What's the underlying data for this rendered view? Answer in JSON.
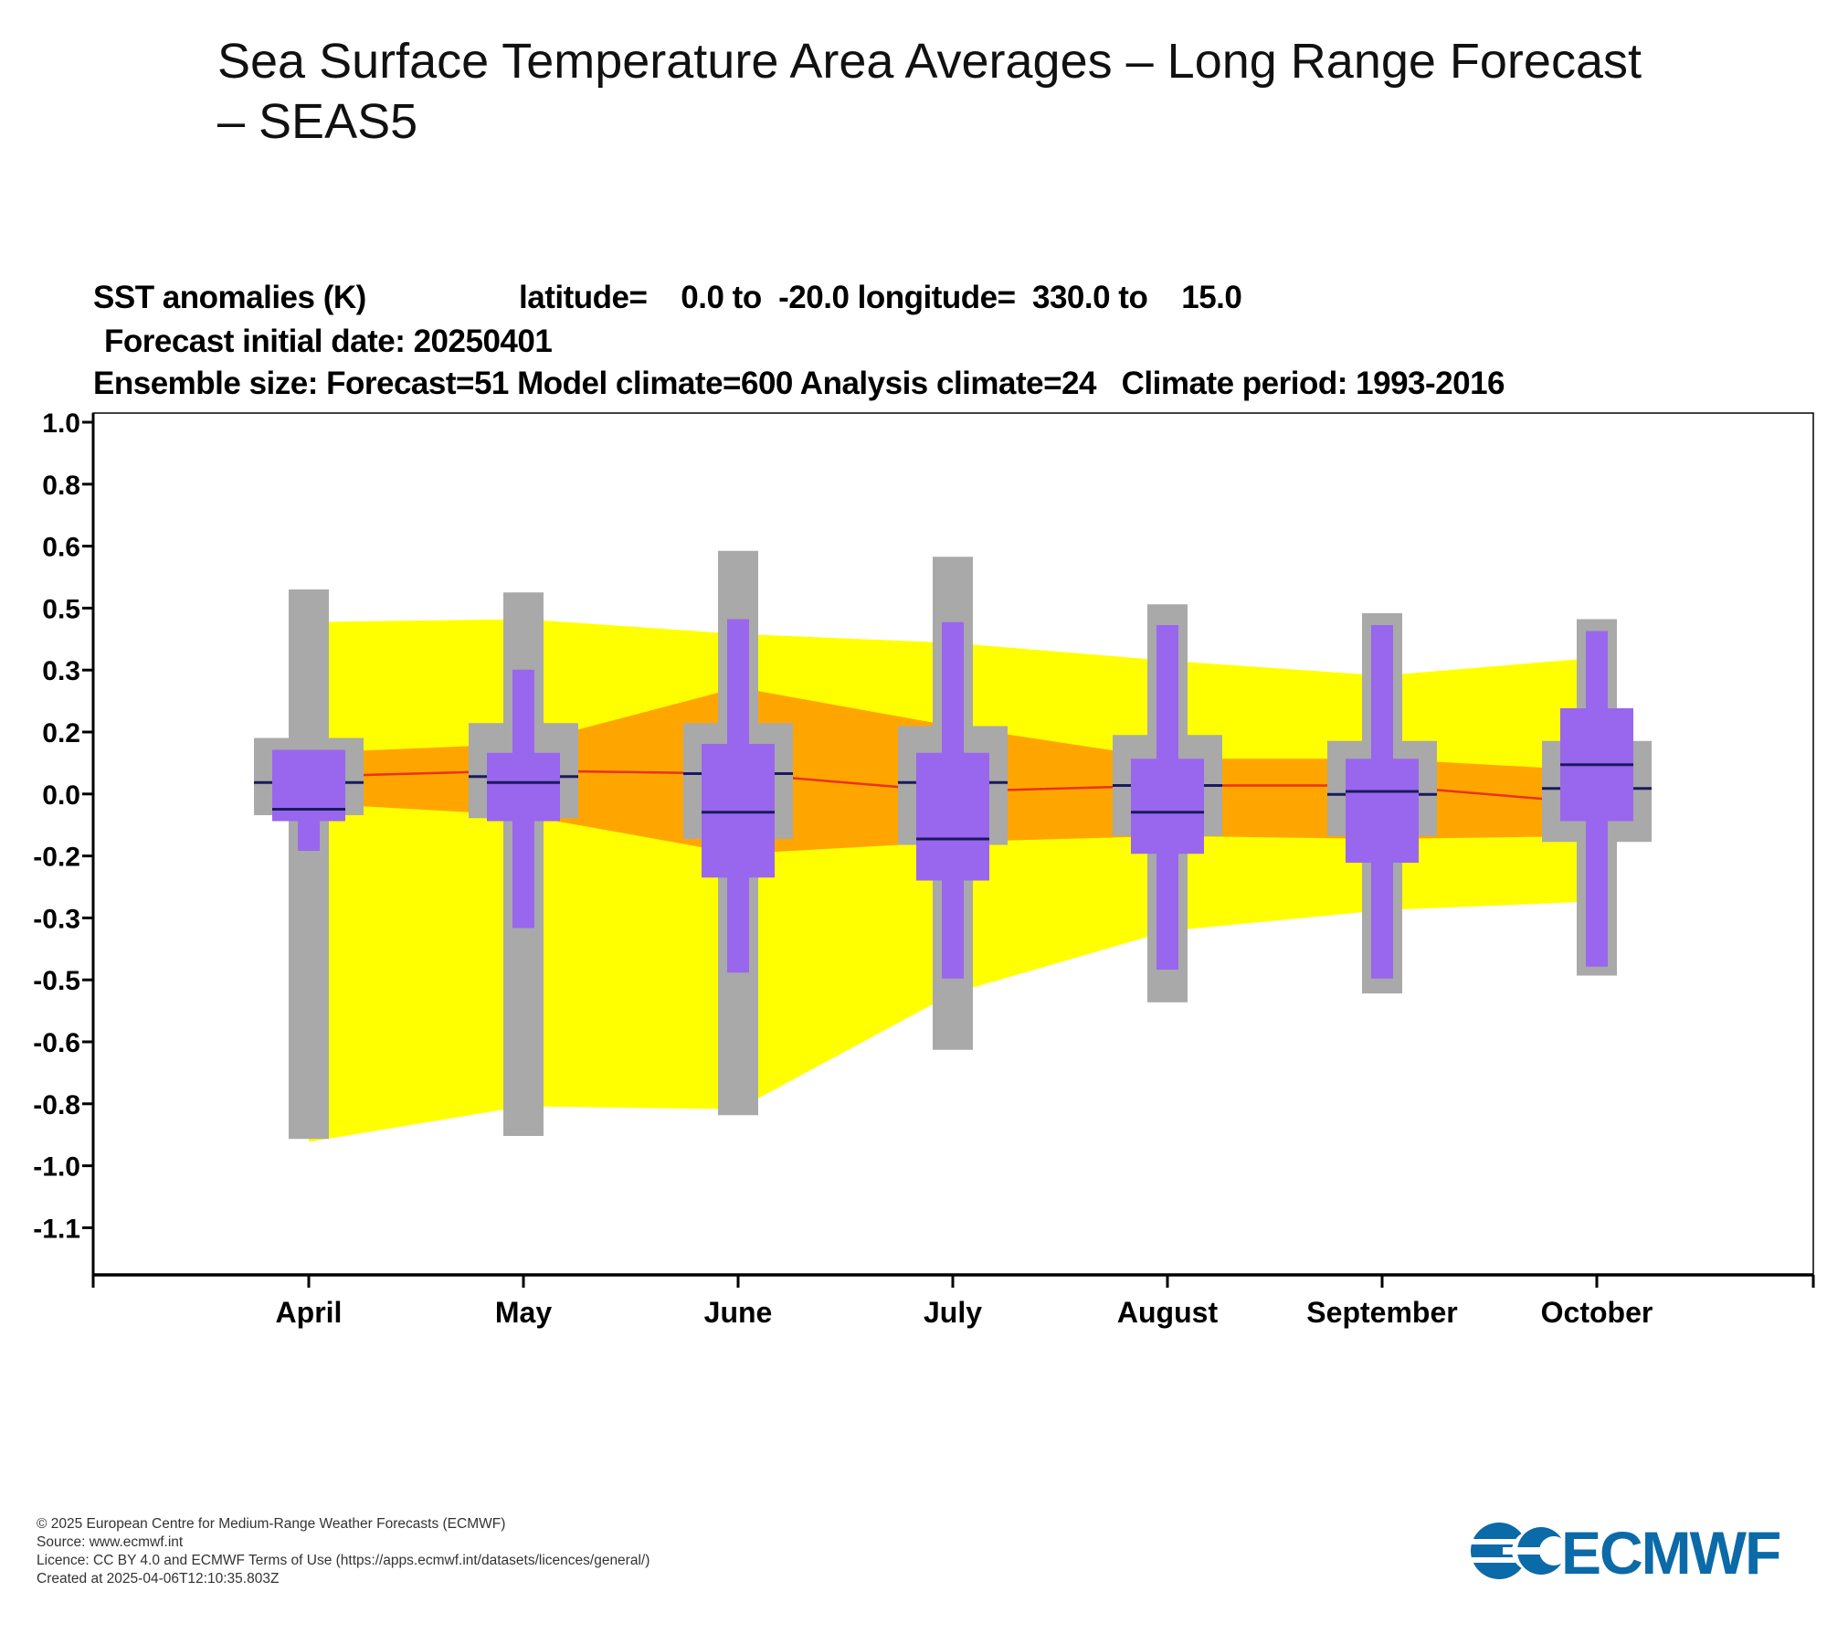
{
  "page_title": "Sea Surface Temperature Area Averages – Long Range Forecast – SEAS5",
  "chart_header": {
    "line1_quantity": "SST anomalies (K)",
    "line1_region": "latitude=    0.0 to  -20.0 longitude=  330.0 to    15.0",
    "line2": "Forecast initial date: 20250401",
    "line3": "Ensemble size: Forecast=51 Model climate=600 Analysis climate=24   Climate period: 1993-2016"
  },
  "footer": {
    "copyright": "© 2025 European Centre for Medium-Range Weather Forecasts (ECMWF)",
    "source": "Source: www.ecmwf.int",
    "licence": "Licence: CC BY 4.0 and ECMWF Terms of Use (https://apps.ecmwf.int/datasets/licences/general/)",
    "created": "Created at 2025-04-06T12:10:35.803Z"
  },
  "logo_text": "ECMWF",
  "colors": {
    "climate_outer_band": "#ffff00",
    "climate_inner_band": "#ffa500",
    "median_line": "#e8321e",
    "forecast_box": "#9966ee",
    "climate_box": "#a9a9a9",
    "median_mark": "#1a1a5e",
    "logo": "#0b6aa8"
  },
  "chart_data": {
    "type": "box",
    "ylim": [
      -1.2,
      1.2
    ],
    "yticks": [
      1.0,
      0.8,
      0.6,
      0.5,
      0.3,
      0.2,
      0.0,
      -0.2,
      -0.3,
      -0.5,
      -0.6,
      -0.8,
      -1.0,
      -1.1
    ],
    "ytick_labels": [
      "1.0",
      "0.8",
      "0.6",
      "0.5",
      "0.3",
      "0.2",
      "0.0",
      "-0.2",
      "-0.3",
      "-0.5",
      "-0.6",
      "-0.8",
      "-1.0",
      "-1.1"
    ],
    "categories": [
      "April",
      "May",
      "June",
      "July",
      "August",
      "September",
      "October"
    ],
    "climate_band_outer": {
      "upper": [
        0.57,
        0.58,
        0.53,
        0.5,
        0.44,
        0.39,
        0.45
      ],
      "lower": [
        -1.18,
        -1.06,
        -1.07,
        -0.68,
        -0.47,
        -0.4,
        -0.37
      ]
    },
    "climate_band_inner": {
      "upper": [
        0.13,
        0.16,
        0.35,
        0.22,
        0.11,
        0.11,
        0.07
      ],
      "lower": [
        -0.04,
        -0.08,
        -0.21,
        -0.17,
        -0.15,
        -0.16,
        -0.15
      ]
    },
    "climate_median": [
      0.05,
      0.07,
      0.06,
      0.0,
      0.02,
      0.02,
      -0.04
    ],
    "model_climate": [
      {
        "min": -1.17,
        "q1": -0.08,
        "median": 0.03,
        "q3": 0.18,
        "max": 0.68
      },
      {
        "min": -1.16,
        "q1": -0.09,
        "median": 0.05,
        "q3": 0.23,
        "max": 0.67
      },
      {
        "min": -1.09,
        "q1": -0.16,
        "median": 0.06,
        "q3": 0.23,
        "max": 0.81
      },
      {
        "min": -0.87,
        "q1": -0.18,
        "median": 0.03,
        "q3": 0.22,
        "max": 0.79
      },
      {
        "min": -0.71,
        "q1": -0.15,
        "median": 0.02,
        "q3": 0.19,
        "max": 0.63
      },
      {
        "min": -0.68,
        "q1": -0.15,
        "median": -0.01,
        "q3": 0.17,
        "max": 0.6
      },
      {
        "min": -0.62,
        "q1": -0.17,
        "median": 0.01,
        "q3": 0.17,
        "max": 0.58
      }
    ],
    "forecast": [
      {
        "min": -0.2,
        "q1": -0.1,
        "median": -0.06,
        "q3": 0.14,
        "max": 0.14
      },
      {
        "min": -0.46,
        "q1": -0.1,
        "median": 0.03,
        "q3": 0.13,
        "max": 0.41
      },
      {
        "min": -0.61,
        "q1": -0.29,
        "median": -0.07,
        "q3": 0.16,
        "max": 0.58
      },
      {
        "min": -0.63,
        "q1": -0.3,
        "median": -0.16,
        "q3": 0.13,
        "max": 0.57
      },
      {
        "min": -0.6,
        "q1": -0.21,
        "median": -0.07,
        "q3": 0.11,
        "max": 0.56
      },
      {
        "min": -0.63,
        "q1": -0.24,
        "median": 0.0,
        "q3": 0.11,
        "max": 0.56
      },
      {
        "min": -0.59,
        "q1": -0.1,
        "median": 0.09,
        "q3": 0.28,
        "max": 0.54
      }
    ],
    "xlabel": "",
    "ylabel": "",
    "grid": false
  }
}
